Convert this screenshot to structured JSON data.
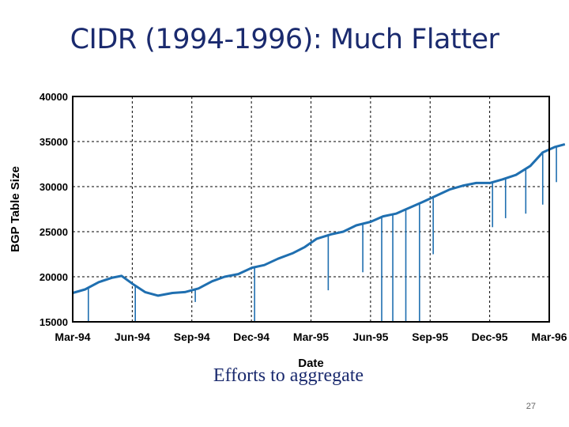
{
  "slide": {
    "title": "CIDR (1994-1996): Much Flatter",
    "caption": "Efforts to aggregate",
    "page_number": "27"
  },
  "colors": {
    "series": "#1f6fb0",
    "text": "#1a2a6e",
    "axis": "#000000"
  },
  "chart_data": {
    "type": "line",
    "title": "",
    "xlabel": "Date",
    "ylabel": "BGP Table Size",
    "x_ticks": [
      "Mar-94",
      "Jun-94",
      "Sep-94",
      "Dec-94",
      "Mar-95",
      "Jun-95",
      "Sep-95",
      "Dec-95",
      "Mar-96"
    ],
    "y_ticks": [
      15000,
      20000,
      25000,
      30000,
      35000,
      40000
    ],
    "ylim": [
      15000,
      40000
    ],
    "xlim": [
      "1994-03",
      "1996-03"
    ],
    "grid": true,
    "series": [
      {
        "name": "",
        "points": [
          [
            "1994-03-01",
            18200
          ],
          [
            "1994-03-20",
            18600
          ],
          [
            "1994-04-10",
            19400
          ],
          [
            "1994-05-01",
            19900
          ],
          [
            "1994-05-15",
            20100
          ],
          [
            "1994-06-01",
            19200
          ],
          [
            "1994-06-20",
            18300
          ],
          [
            "1994-07-10",
            17900
          ],
          [
            "1994-08-01",
            18200
          ],
          [
            "1994-08-20",
            18300
          ],
          [
            "1994-09-10",
            18700
          ],
          [
            "1994-10-01",
            19500
          ],
          [
            "1994-10-20",
            20000
          ],
          [
            "1994-11-10",
            20300
          ],
          [
            "1994-12-01",
            21000
          ],
          [
            "1994-12-20",
            21300
          ],
          [
            "1995-01-10",
            22000
          ],
          [
            "1995-02-01",
            22600
          ],
          [
            "1995-02-20",
            23300
          ],
          [
            "1995-03-10",
            24200
          ],
          [
            "1995-04-01",
            24700
          ],
          [
            "1995-04-20",
            25000
          ],
          [
            "1995-05-10",
            25700
          ],
          [
            "1995-06-01",
            26100
          ],
          [
            "1995-06-20",
            26700
          ],
          [
            "1995-07-10",
            27000
          ],
          [
            "1995-08-01",
            27700
          ],
          [
            "1995-08-20",
            28300
          ],
          [
            "1995-09-10",
            29000
          ],
          [
            "1995-10-01",
            29700
          ],
          [
            "1995-10-20",
            30100
          ],
          [
            "1995-11-10",
            30400
          ],
          [
            "1995-12-01",
            30400
          ],
          [
            "1995-12-20",
            30800
          ],
          [
            "1996-01-10",
            31300
          ],
          [
            "1996-02-01",
            32300
          ],
          [
            "1996-02-20",
            33800
          ],
          [
            "1996-03-10",
            34400
          ],
          [
            "1996-03-25",
            34700
          ]
        ],
        "dips": [
          [
            "1994-03-25",
            15000
          ],
          [
            "1994-06-05",
            15000
          ],
          [
            "1994-09-05",
            17200
          ],
          [
            "1994-12-05",
            15000
          ],
          [
            "1995-03-28",
            18500
          ],
          [
            "1995-05-20",
            20500
          ],
          [
            "1995-06-18",
            15000
          ],
          [
            "1995-07-05",
            15000
          ],
          [
            "1995-07-25",
            15000
          ],
          [
            "1995-08-15",
            15000
          ],
          [
            "1995-09-05",
            22500
          ],
          [
            "1995-12-05",
            25500
          ],
          [
            "1995-12-25",
            26500
          ],
          [
            "1996-01-25",
            27000
          ],
          [
            "1996-02-20",
            28000
          ],
          [
            "1996-03-12",
            30500
          ]
        ]
      }
    ]
  }
}
